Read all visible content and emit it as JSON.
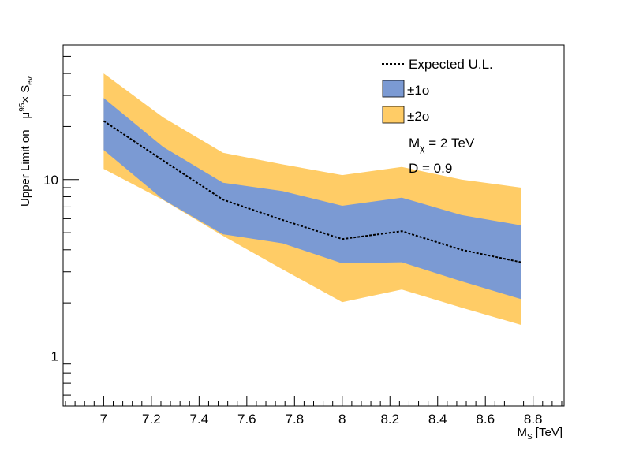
{
  "chart_data": {
    "type": "area",
    "xlabel": "M",
    "xlabel_sub": "S",
    "xlabel_unit": " [TeV]",
    "ylabel_prefix": "Upper Limit on",
    "ylabel_mu": "μ",
    "ylabel_mu_sup": "95",
    "ylabel_times": "× S",
    "ylabel_sub": "ev",
    "xlim": [
      6.83,
      8.93
    ],
    "ylim": [
      0.52,
      58
    ],
    "y_log_scale": true,
    "x_ticks": [
      7,
      7.2,
      7.4,
      7.6,
      7.8,
      8,
      8.2,
      8.4,
      8.6,
      8.8
    ],
    "x_tick_labels": [
      "7",
      "7.2",
      "7.4",
      "7.6",
      "7.8",
      "8",
      "8.2",
      "8.4",
      "8.6",
      "8.8"
    ],
    "y_ticks": [
      1,
      10
    ],
    "y_tick_labels": [
      "1",
      "10"
    ],
    "x": [
      7.0,
      7.25,
      7.5,
      7.75,
      8.0,
      8.25,
      8.5,
      8.75
    ],
    "series": [
      {
        "name": "Expected U.L.",
        "role": "median",
        "values": [
          21.5,
          12.8,
          7.7,
          5.9,
          4.6,
          5.1,
          4.0,
          3.4
        ]
      },
      {
        "name": "±1σ",
        "role": "band",
        "lower": [
          14.7,
          7.7,
          4.9,
          4.35,
          3.35,
          3.4,
          2.65,
          2.1
        ],
        "upper": [
          29.0,
          15.3,
          9.6,
          8.6,
          7.1,
          7.9,
          6.3,
          5.5
        ]
      },
      {
        "name": "±2σ",
        "role": "band",
        "lower": [
          11.5,
          7.65,
          4.8,
          3.1,
          2.02,
          2.38,
          1.88,
          1.5
        ],
        "upper": [
          40.0,
          22.5,
          14.2,
          12.2,
          10.6,
          11.8,
          10.0,
          9.0
        ]
      }
    ],
    "colors": {
      "one_sigma": "#7b9ad3",
      "two_sigma": "#ffcc66",
      "expected": "#000000"
    },
    "legend": {
      "placement": "top-right",
      "expected_label": "Expected U.L.",
      "one_sigma_label": "±1σ",
      "two_sigma_label": "±2σ"
    },
    "annotations": {
      "mass_symbol": "M",
      "mass_sub": "χ",
      "mass_value": " = 2 TeV",
      "d_text": "D = 0.9"
    },
    "grid": false
  }
}
